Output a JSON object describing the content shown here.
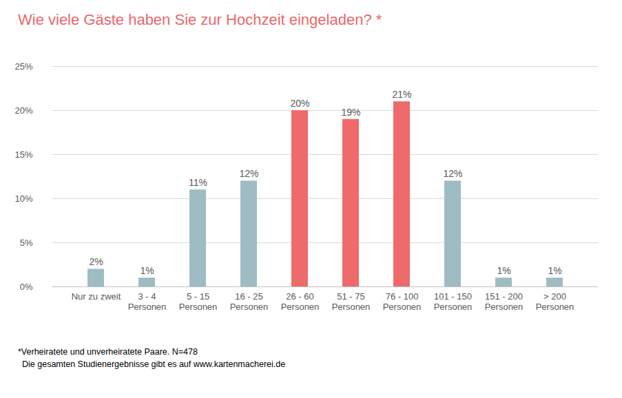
{
  "chart_data": {
    "type": "bar",
    "title": "Wie viele Gäste haben Sie zur Hochzeit eingeladen? *",
    "categories": [
      "Nur zu zweit",
      "3 - 4\nPersonen",
      "5 - 15\nPersonen",
      "16 - 25\nPersonen",
      "26 - 60\nPersonen",
      "51 - 75\nPersonen",
      "76 - 100\nPersonen",
      "101 - 150\nPersonen",
      "151 - 200\nPersonen",
      "> 200\nPersonen"
    ],
    "values": [
      2,
      1,
      11,
      12,
      20,
      19,
      21,
      12,
      1,
      1
    ],
    "value_labels": [
      "2%",
      "1%",
      "11%",
      "12%",
      "20%",
      "19%",
      "21%",
      "12%",
      "1%",
      "1%"
    ],
    "colors": [
      "#9fbcc4",
      "#9fbcc4",
      "#9fbcc4",
      "#9fbcc4",
      "#ef6b6b",
      "#ef6b6b",
      "#ef6b6b",
      "#9fbcc4",
      "#9fbcc4",
      "#9fbcc4"
    ],
    "ylim": [
      0,
      25
    ],
    "yticks": [
      {
        "value": 0,
        "label": "0%"
      },
      {
        "value": 5,
        "label": "5%"
      },
      {
        "value": 10,
        "label": "10%"
      },
      {
        "value": 15,
        "label": "15%"
      },
      {
        "value": 20,
        "label": "20%"
      },
      {
        "value": 25,
        "label": "25%"
      }
    ],
    "grid": true,
    "data_labels": true,
    "footnotes": [
      "*Verheiratete und unverheiratete Paare. N=478",
      "Die gesamten Studienergebnisse gibt es auf www.kartenmacherei.de"
    ]
  }
}
